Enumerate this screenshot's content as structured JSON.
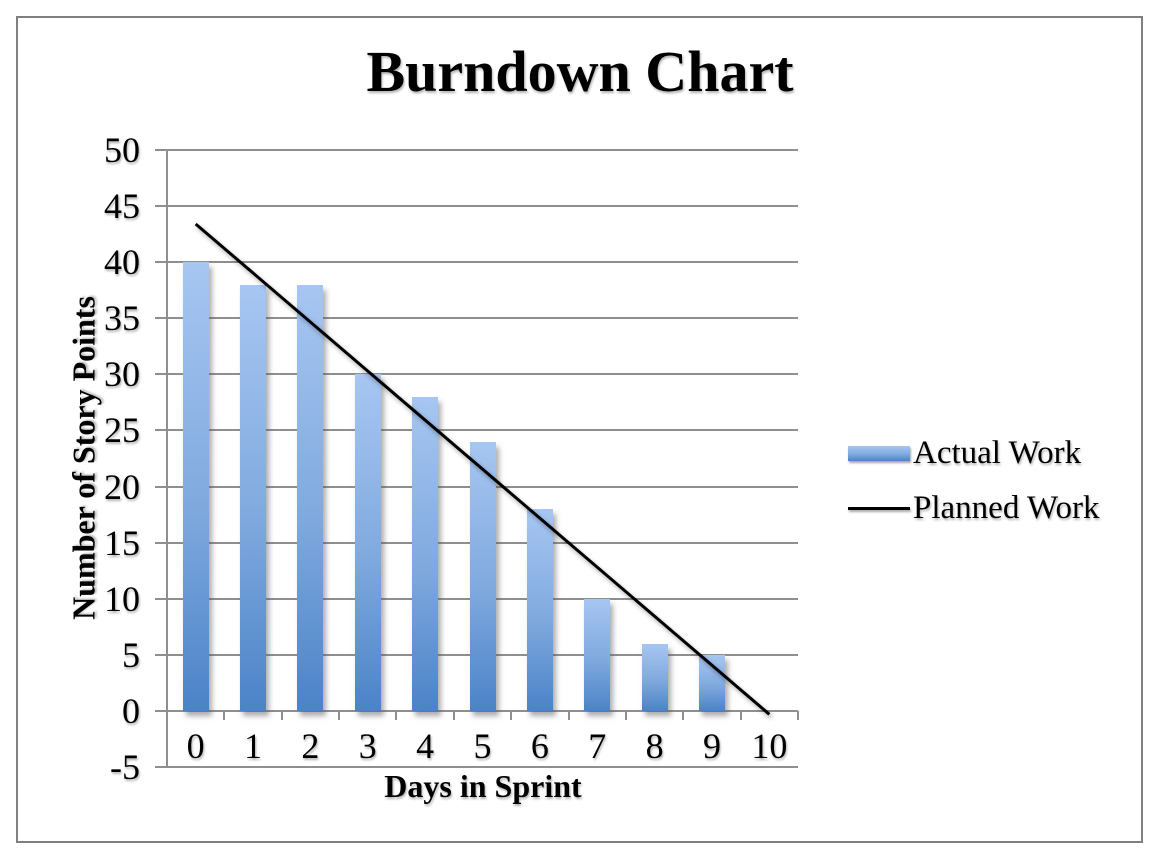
{
  "frame": {
    "border_color": "#7F7F7F",
    "background": "#FFFFFF"
  },
  "chart_data": {
    "type": "bar",
    "title": "Burndown Chart",
    "xlabel": "Days in Sprint",
    "ylabel": "Number of Story Points",
    "categories": [
      "0",
      "1",
      "2",
      "3",
      "4",
      "5",
      "6",
      "7",
      "8",
      "9",
      "10"
    ],
    "series": [
      {
        "name": "Actual Work",
        "type": "bar",
        "values": [
          40,
          38,
          38,
          30,
          28,
          24,
          18,
          10,
          6,
          5,
          null
        ]
      },
      {
        "name": "Planned Work",
        "type": "line",
        "points": [
          [
            0,
            43.4
          ],
          [
            10,
            -0.3
          ]
        ]
      }
    ],
    "ylim": [
      -5,
      50
    ],
    "yticks": [
      50,
      45,
      40,
      35,
      30,
      25,
      20,
      15,
      10,
      5,
      0,
      -5
    ],
    "grid": true,
    "legend_position": "right",
    "colors": {
      "bar_gradient_top": "#A7C6F2",
      "bar_gradient_bottom": "#4B83C8",
      "planned_line": "#000000",
      "gridline": "#8F8F8F",
      "text": "#000000"
    }
  }
}
